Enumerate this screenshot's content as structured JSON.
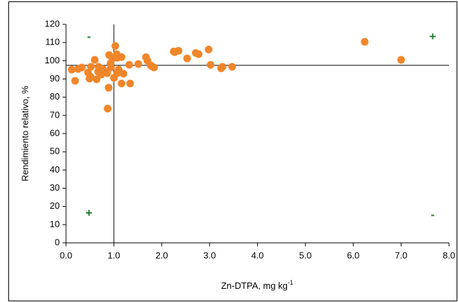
{
  "chart_data": {
    "type": "scatter",
    "x_label": "Zn-DTPA, mg kg",
    "x_label_superscript": "-1",
    "y_label": "Rendimiento relativo, %",
    "color": "#f0862a",
    "xlim": [
      0,
      8
    ],
    "ylim": [
      0,
      120
    ],
    "xticks": [
      {
        "value": 0,
        "label": "0.0"
      },
      {
        "value": 1,
        "label": "1.0"
      },
      {
        "value": 2,
        "label": "2.0"
      },
      {
        "value": 3,
        "label": "3.0"
      },
      {
        "value": 4,
        "label": "4.0"
      },
      {
        "value": 5,
        "label": "5.0"
      },
      {
        "value": 6,
        "label": "6.0"
      },
      {
        "value": 7,
        "label": "7.0"
      },
      {
        "value": 8,
        "label": "8.0"
      }
    ],
    "yticks": [
      0,
      10,
      20,
      30,
      40,
      50,
      60,
      70,
      80,
      90,
      100,
      110,
      120
    ],
    "grid": false,
    "hline": 97.5,
    "vline": 1.0,
    "annotations": [
      {
        "text": "-",
        "x": 0.48,
        "y": 113
      },
      {
        "text": "+",
        "x": 7.66,
        "y": 113
      },
      {
        "text": "+",
        "x": 0.48,
        "y": 16
      },
      {
        "text": "-",
        "x": 7.66,
        "y": 15
      }
    ],
    "x": [
      0.12,
      0.19,
      0.25,
      0.33,
      0.46,
      0.51,
      0.49,
      0.52,
      0.6,
      0.64,
      0.67,
      0.68,
      0.74,
      0.77,
      0.83,
      0.86,
      0.89,
      0.87,
      0.9,
      0.93,
      0.94,
      0.97,
      1.0,
      1.03,
      1.06,
      1.07,
      1.07,
      1.1,
      1.16,
      1.16,
      1.2,
      1.32,
      1.34,
      1.51,
      1.67,
      1.7,
      1.77,
      1.81,
      1.84,
      2.25,
      2.27,
      2.35,
      2.53,
      2.71,
      2.77,
      2.98,
      3.02,
      3.24,
      3.27,
      3.47,
      6.24,
      7.0
    ],
    "values": [
      95.1,
      89.0,
      95.5,
      96.3,
      93.6,
      91.3,
      90.2,
      96.7,
      100.5,
      89.8,
      94.0,
      96.7,
      92.5,
      95.5,
      94.0,
      93.2,
      85.2,
      73.7,
      103.2,
      98.6,
      96.3,
      101.3,
      90.6,
      108.1,
      103.6,
      101.6,
      93.2,
      95.1,
      87.5,
      102.0,
      92.9,
      97.8,
      87.5,
      98.2,
      102.0,
      100.1,
      97.4,
      96.7,
      96.3,
      105.1,
      104.7,
      105.5,
      101.3,
      104.3,
      103.6,
      106.2,
      97.8,
      95.9,
      96.7,
      96.7,
      110.4,
      100.5
    ]
  }
}
